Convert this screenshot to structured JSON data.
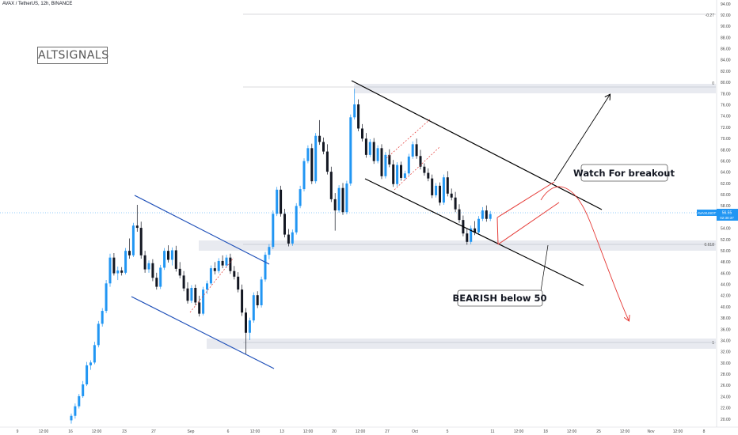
{
  "header": {
    "title": "AVAX / TetherUS, 12h, BINANCE"
  },
  "logo": "ALTSIGNALS",
  "chart_data": {
    "type": "candlestick",
    "symbol_badge": "AVAXUSDT",
    "last_price": "56.55",
    "countdown": "02:30:37",
    "ylim": [
      19,
      95
    ],
    "y_ticks": [
      "94.00",
      "92.00",
      "90.00",
      "88.00",
      "86.00",
      "84.00",
      "82.00",
      "80.00",
      "78.00",
      "76.00",
      "74.00",
      "72.00",
      "70.00",
      "68.00",
      "66.00",
      "64.00",
      "62.00",
      "60.00",
      "58.00",
      "56.00",
      "54.00",
      "52.00",
      "50.00",
      "48.00",
      "46.00",
      "44.00",
      "42.00",
      "40.00",
      "38.00",
      "36.00",
      "34.00",
      "32.00",
      "30.00",
      "28.00",
      "26.00",
      "24.00",
      "22.00",
      "20.00"
    ],
    "x_ticks": [
      "9",
      "12:00",
      "16",
      "12:00",
      "23",
      "27",
      "Sep",
      "6",
      "12:00",
      "13",
      "12:00",
      "20",
      "12:00",
      "27",
      "Oct",
      "5",
      "11",
      "12:00",
      "18",
      "12:00",
      "25",
      "12:00",
      "Nov",
      "12:00",
      "8"
    ],
    "fib_labels": [
      "-0.27",
      "0",
      "0.618",
      "1"
    ],
    "annotations": [
      "Watch For breakout",
      "BEARISH below 50"
    ],
    "series": [
      {
        "o": 19.8,
        "h": 21,
        "l": 19.2,
        "c": 20.6
      },
      {
        "o": 20.6,
        "h": 22.8,
        "l": 20.1,
        "c": 22.3
      },
      {
        "o": 22.3,
        "h": 24.5,
        "l": 21.9,
        "c": 24.1
      },
      {
        "o": 24.1,
        "h": 26.8,
        "l": 23.8,
        "c": 26.2
      },
      {
        "o": 26.2,
        "h": 30.2,
        "l": 25.9,
        "c": 29.6
      },
      {
        "o": 29.6,
        "h": 30.5,
        "l": 28.8,
        "c": 30.1
      },
      {
        "o": 30.1,
        "h": 33.8,
        "l": 29.8,
        "c": 33.2
      },
      {
        "o": 33.2,
        "h": 37.5,
        "l": 32.8,
        "c": 37
      },
      {
        "o": 37,
        "h": 39.8,
        "l": 36.5,
        "c": 39.3
      },
      {
        "o": 39.3,
        "h": 44.8,
        "l": 38.9,
        "c": 44.2
      },
      {
        "o": 44.2,
        "h": 49.5,
        "l": 43.6,
        "c": 48.8
      },
      {
        "o": 48.8,
        "h": 49.6,
        "l": 45.6,
        "c": 46
      },
      {
        "o": 46,
        "h": 47.2,
        "l": 44.8,
        "c": 46.5
      },
      {
        "o": 46.5,
        "h": 47.1,
        "l": 45.6,
        "c": 46.1
      },
      {
        "o": 46.1,
        "h": 50.5,
        "l": 45.8,
        "c": 50
      },
      {
        "o": 50,
        "h": 52.2,
        "l": 48.6,
        "c": 49.2
      },
      {
        "o": 49.2,
        "h": 55,
        "l": 48.9,
        "c": 54.5
      },
      {
        "o": 54.5,
        "h": 58.2,
        "l": 53.4,
        "c": 54.1
      },
      {
        "o": 54.1,
        "h": 55.2,
        "l": 48.6,
        "c": 49.2
      },
      {
        "o": 49.2,
        "h": 50,
        "l": 46.1,
        "c": 46.7
      },
      {
        "o": 46.7,
        "h": 48.3,
        "l": 46.1,
        "c": 47.8
      },
      {
        "o": 47.8,
        "h": 48.5,
        "l": 44.6,
        "c": 45.2
      },
      {
        "o": 45.2,
        "h": 46.1,
        "l": 43.1,
        "c": 43.6
      },
      {
        "o": 43.6,
        "h": 47.5,
        "l": 43.2,
        "c": 47
      },
      {
        "o": 47,
        "h": 50.5,
        "l": 46.6,
        "c": 50
      },
      {
        "o": 50,
        "h": 51,
        "l": 47.9,
        "c": 48.4
      },
      {
        "o": 48.4,
        "h": 50.6,
        "l": 47.4,
        "c": 50.1
      },
      {
        "o": 50.1,
        "h": 50.9,
        "l": 46.3,
        "c": 46.8
      },
      {
        "o": 46.8,
        "h": 48,
        "l": 45.1,
        "c": 45.6
      },
      {
        "o": 45.6,
        "h": 46.4,
        "l": 42.8,
        "c": 43.3
      },
      {
        "o": 43.3,
        "h": 44.4,
        "l": 40.6,
        "c": 41.1
      },
      {
        "o": 41.1,
        "h": 43.9,
        "l": 40.7,
        "c": 43.4
      },
      {
        "o": 43.4,
        "h": 44,
        "l": 40.3,
        "c": 40.8
      },
      {
        "o": 40.8,
        "h": 42,
        "l": 38.3,
        "c": 38.8
      },
      {
        "o": 38.8,
        "h": 43.6,
        "l": 38.5,
        "c": 43.1
      },
      {
        "o": 43.1,
        "h": 44.7,
        "l": 42.3,
        "c": 44.2
      },
      {
        "o": 44.2,
        "h": 47.4,
        "l": 43.9,
        "c": 46.9
      },
      {
        "o": 46.9,
        "h": 48,
        "l": 45.8,
        "c": 46.4
      },
      {
        "o": 46.4,
        "h": 48.7,
        "l": 46,
        "c": 48.2
      },
      {
        "o": 48.2,
        "h": 49.2,
        "l": 46.9,
        "c": 47.4
      },
      {
        "o": 47.4,
        "h": 49.3,
        "l": 47,
        "c": 48.8
      },
      {
        "o": 48.8,
        "h": 49.5,
        "l": 45.9,
        "c": 46.4
      },
      {
        "o": 46.4,
        "h": 47.3,
        "l": 44.9,
        "c": 45.4
      },
      {
        "o": 45.4,
        "h": 46.2,
        "l": 42.6,
        "c": 43.1
      },
      {
        "o": 43.1,
        "h": 44,
        "l": 38.4,
        "c": 39
      },
      {
        "o": 39,
        "h": 39.8,
        "l": 31.6,
        "c": 35.4
      },
      {
        "o": 35.4,
        "h": 38.1,
        "l": 34.1,
        "c": 37.6
      },
      {
        "o": 37.6,
        "h": 42.6,
        "l": 37.2,
        "c": 42.1
      },
      {
        "o": 42.1,
        "h": 42.8,
        "l": 39.8,
        "c": 40.3
      },
      {
        "o": 40.3,
        "h": 45.4,
        "l": 39.9,
        "c": 44.9
      },
      {
        "o": 44.9,
        "h": 49.8,
        "l": 44.5,
        "c": 49.3
      },
      {
        "o": 49.3,
        "h": 51.2,
        "l": 48.5,
        "c": 50.7
      },
      {
        "o": 50.7,
        "h": 57.2,
        "l": 50.3,
        "c": 56.6
      },
      {
        "o": 56.6,
        "h": 61.4,
        "l": 56.2,
        "c": 60.9
      },
      {
        "o": 60.9,
        "h": 61.6,
        "l": 56.1,
        "c": 56.6
      },
      {
        "o": 56.6,
        "h": 57.5,
        "l": 52.4,
        "c": 52.9
      },
      {
        "o": 52.9,
        "h": 53.9,
        "l": 50.8,
        "c": 51.3
      },
      {
        "o": 51.3,
        "h": 53.8,
        "l": 50.9,
        "c": 53.3
      },
      {
        "o": 53.3,
        "h": 58.5,
        "l": 52.9,
        "c": 58
      },
      {
        "o": 58,
        "h": 61.6,
        "l": 57.6,
        "c": 61
      },
      {
        "o": 61,
        "h": 66.5,
        "l": 60.6,
        "c": 66
      },
      {
        "o": 66,
        "h": 68.8,
        "l": 65.6,
        "c": 68.3
      },
      {
        "o": 68.3,
        "h": 69.1,
        "l": 61.9,
        "c": 62.4
      },
      {
        "o": 62.4,
        "h": 71,
        "l": 62,
        "c": 70.5
      },
      {
        "o": 70.5,
        "h": 73.3,
        "l": 68.9,
        "c": 69.4
      },
      {
        "o": 69.4,
        "h": 70.2,
        "l": 67.2,
        "c": 67.7
      },
      {
        "o": 67.7,
        "h": 69,
        "l": 63.6,
        "c": 64.1
      },
      {
        "o": 64.1,
        "h": 65,
        "l": 58.7,
        "c": 59.2
      },
      {
        "o": 59.2,
        "h": 60.3,
        "l": 53.6,
        "c": 57.2
      },
      {
        "o": 57.2,
        "h": 61.7,
        "l": 56.8,
        "c": 61.2
      },
      {
        "o": 61.2,
        "h": 62.1,
        "l": 56.4,
        "c": 56.9
      },
      {
        "o": 56.9,
        "h": 62.5,
        "l": 56.5,
        "c": 62
      },
      {
        "o": 62,
        "h": 74.3,
        "l": 61.6,
        "c": 73.8
      },
      {
        "o": 73.8,
        "h": 78.9,
        "l": 73.4,
        "c": 76.1
      },
      {
        "o": 76.1,
        "h": 77,
        "l": 71.3,
        "c": 71.8
      },
      {
        "o": 71.8,
        "h": 72.6,
        "l": 69.5,
        "c": 70
      },
      {
        "o": 70,
        "h": 71,
        "l": 66.6,
        "c": 67.1
      },
      {
        "o": 67.1,
        "h": 69.9,
        "l": 66.7,
        "c": 69.4
      },
      {
        "o": 69.4,
        "h": 70.1,
        "l": 65.5,
        "c": 66
      },
      {
        "o": 66,
        "h": 68.8,
        "l": 65.6,
        "c": 68.3
      },
      {
        "o": 68.3,
        "h": 69,
        "l": 62.8,
        "c": 63.3
      },
      {
        "o": 63.3,
        "h": 67.6,
        "l": 62.9,
        "c": 67.1
      },
      {
        "o": 67.1,
        "h": 68.1,
        "l": 64.9,
        "c": 65.4
      },
      {
        "o": 65.4,
        "h": 66.2,
        "l": 61.4,
        "c": 61.9
      },
      {
        "o": 61.9,
        "h": 65.8,
        "l": 61.5,
        "c": 65.3
      },
      {
        "o": 65.3,
        "h": 65.9,
        "l": 62.5,
        "c": 63
      },
      {
        "o": 63,
        "h": 64.3,
        "l": 62.6,
        "c": 63.8
      },
      {
        "o": 63.8,
        "h": 67.3,
        "l": 63.4,
        "c": 66.8
      },
      {
        "o": 66.8,
        "h": 69.5,
        "l": 66.4,
        "c": 69
      },
      {
        "o": 69,
        "h": 70,
        "l": 66.4,
        "c": 66.9
      },
      {
        "o": 66.9,
        "h": 68,
        "l": 64.5,
        "c": 65
      },
      {
        "o": 65,
        "h": 65.6,
        "l": 63.4,
        "c": 63.9
      },
      {
        "o": 63.9,
        "h": 64.7,
        "l": 62.4,
        "c": 62.9
      },
      {
        "o": 62.9,
        "h": 63.6,
        "l": 59.4,
        "c": 59.9
      },
      {
        "o": 59.9,
        "h": 62.1,
        "l": 59.5,
        "c": 61.6
      },
      {
        "o": 61.6,
        "h": 62.2,
        "l": 58.1,
        "c": 58.6
      },
      {
        "o": 58.6,
        "h": 63.6,
        "l": 58.2,
        "c": 63.1
      },
      {
        "o": 63.1,
        "h": 64.2,
        "l": 59.7,
        "c": 60.2
      },
      {
        "o": 60.2,
        "h": 61.1,
        "l": 59,
        "c": 59.5
      },
      {
        "o": 59.5,
        "h": 60.5,
        "l": 56.9,
        "c": 57.4
      },
      {
        "o": 57.4,
        "h": 58.3,
        "l": 55,
        "c": 55.5
      },
      {
        "o": 55.5,
        "h": 56.3,
        "l": 52.6,
        "c": 53.1
      },
      {
        "o": 53.1,
        "h": 54,
        "l": 51.1,
        "c": 51.6
      },
      {
        "o": 51.6,
        "h": 54.5,
        "l": 51.2,
        "c": 54
      },
      {
        "o": 54,
        "h": 55.3,
        "l": 52.8,
        "c": 53.3
      },
      {
        "o": 53.3,
        "h": 56.2,
        "l": 52.9,
        "c": 55.7
      },
      {
        "o": 55.7,
        "h": 57.8,
        "l": 55.3,
        "c": 57.2
      },
      {
        "o": 57.2,
        "h": 58.1,
        "l": 55.2,
        "c": 55.7
      },
      {
        "o": 55.7,
        "h": 57.1,
        "l": 55.3,
        "c": 56.55
      }
    ]
  },
  "colors": {
    "up": "#2196f3",
    "down": "#131722",
    "channel_blue": "#1e4fb8",
    "channel_black": "#000000",
    "wedge": "#e53935",
    "zone": "#e0e3eb"
  }
}
